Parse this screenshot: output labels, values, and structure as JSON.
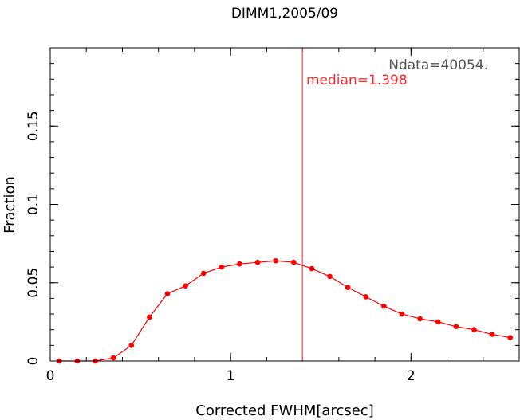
{
  "chart_data": {
    "type": "line",
    "title": "DIMM1,2005/09",
    "xlabel": "Corrected FWHM[arcsec]",
    "ylabel": "Fraction",
    "xlim": [
      0,
      2.6
    ],
    "ylim": [
      0,
      0.2
    ],
    "x_ticks": [
      {
        "value": 0,
        "label": "0"
      },
      {
        "value": 1,
        "label": "1"
      },
      {
        "value": 2,
        "label": "2"
      }
    ],
    "y_ticks": [
      {
        "value": 0,
        "label": "0"
      },
      {
        "value": 0.05,
        "label": "0.05"
      },
      {
        "value": 0.1,
        "label": "0.1"
      },
      {
        "value": 0.15,
        "label": "0.15"
      }
    ],
    "x_minor_step": 0.2,
    "y_minor_step": 0.01,
    "grid": false,
    "series": [
      {
        "x": [
          0.05,
          0.15,
          0.25,
          0.35,
          0.45,
          0.55,
          0.65,
          0.75,
          0.85,
          0.95,
          1.05,
          1.15,
          1.25,
          1.35,
          1.45,
          1.55,
          1.65,
          1.75,
          1.85,
          1.95,
          2.05,
          2.15,
          2.25,
          2.35,
          2.45,
          2.55
        ],
        "y": [
          0.0,
          0.0,
          0.0,
          0.002,
          0.01,
          0.028,
          0.043,
          0.048,
          0.056,
          0.06,
          0.062,
          0.063,
          0.064,
          0.063,
          0.059,
          0.054,
          0.047,
          0.041,
          0.035,
          0.03,
          0.027,
          0.025,
          0.022,
          0.02,
          0.017,
          0.015
        ]
      }
    ],
    "median_line": {
      "x": 1.398
    },
    "annotations": {
      "ndata": "Ndata=40054.",
      "median": "median=1.398"
    },
    "colors": {
      "series": "#ff0000",
      "median_line": "#ff6666",
      "median_text": "#ff2a2a",
      "ndata_text": "#555555",
      "axes": "#000000"
    }
  }
}
